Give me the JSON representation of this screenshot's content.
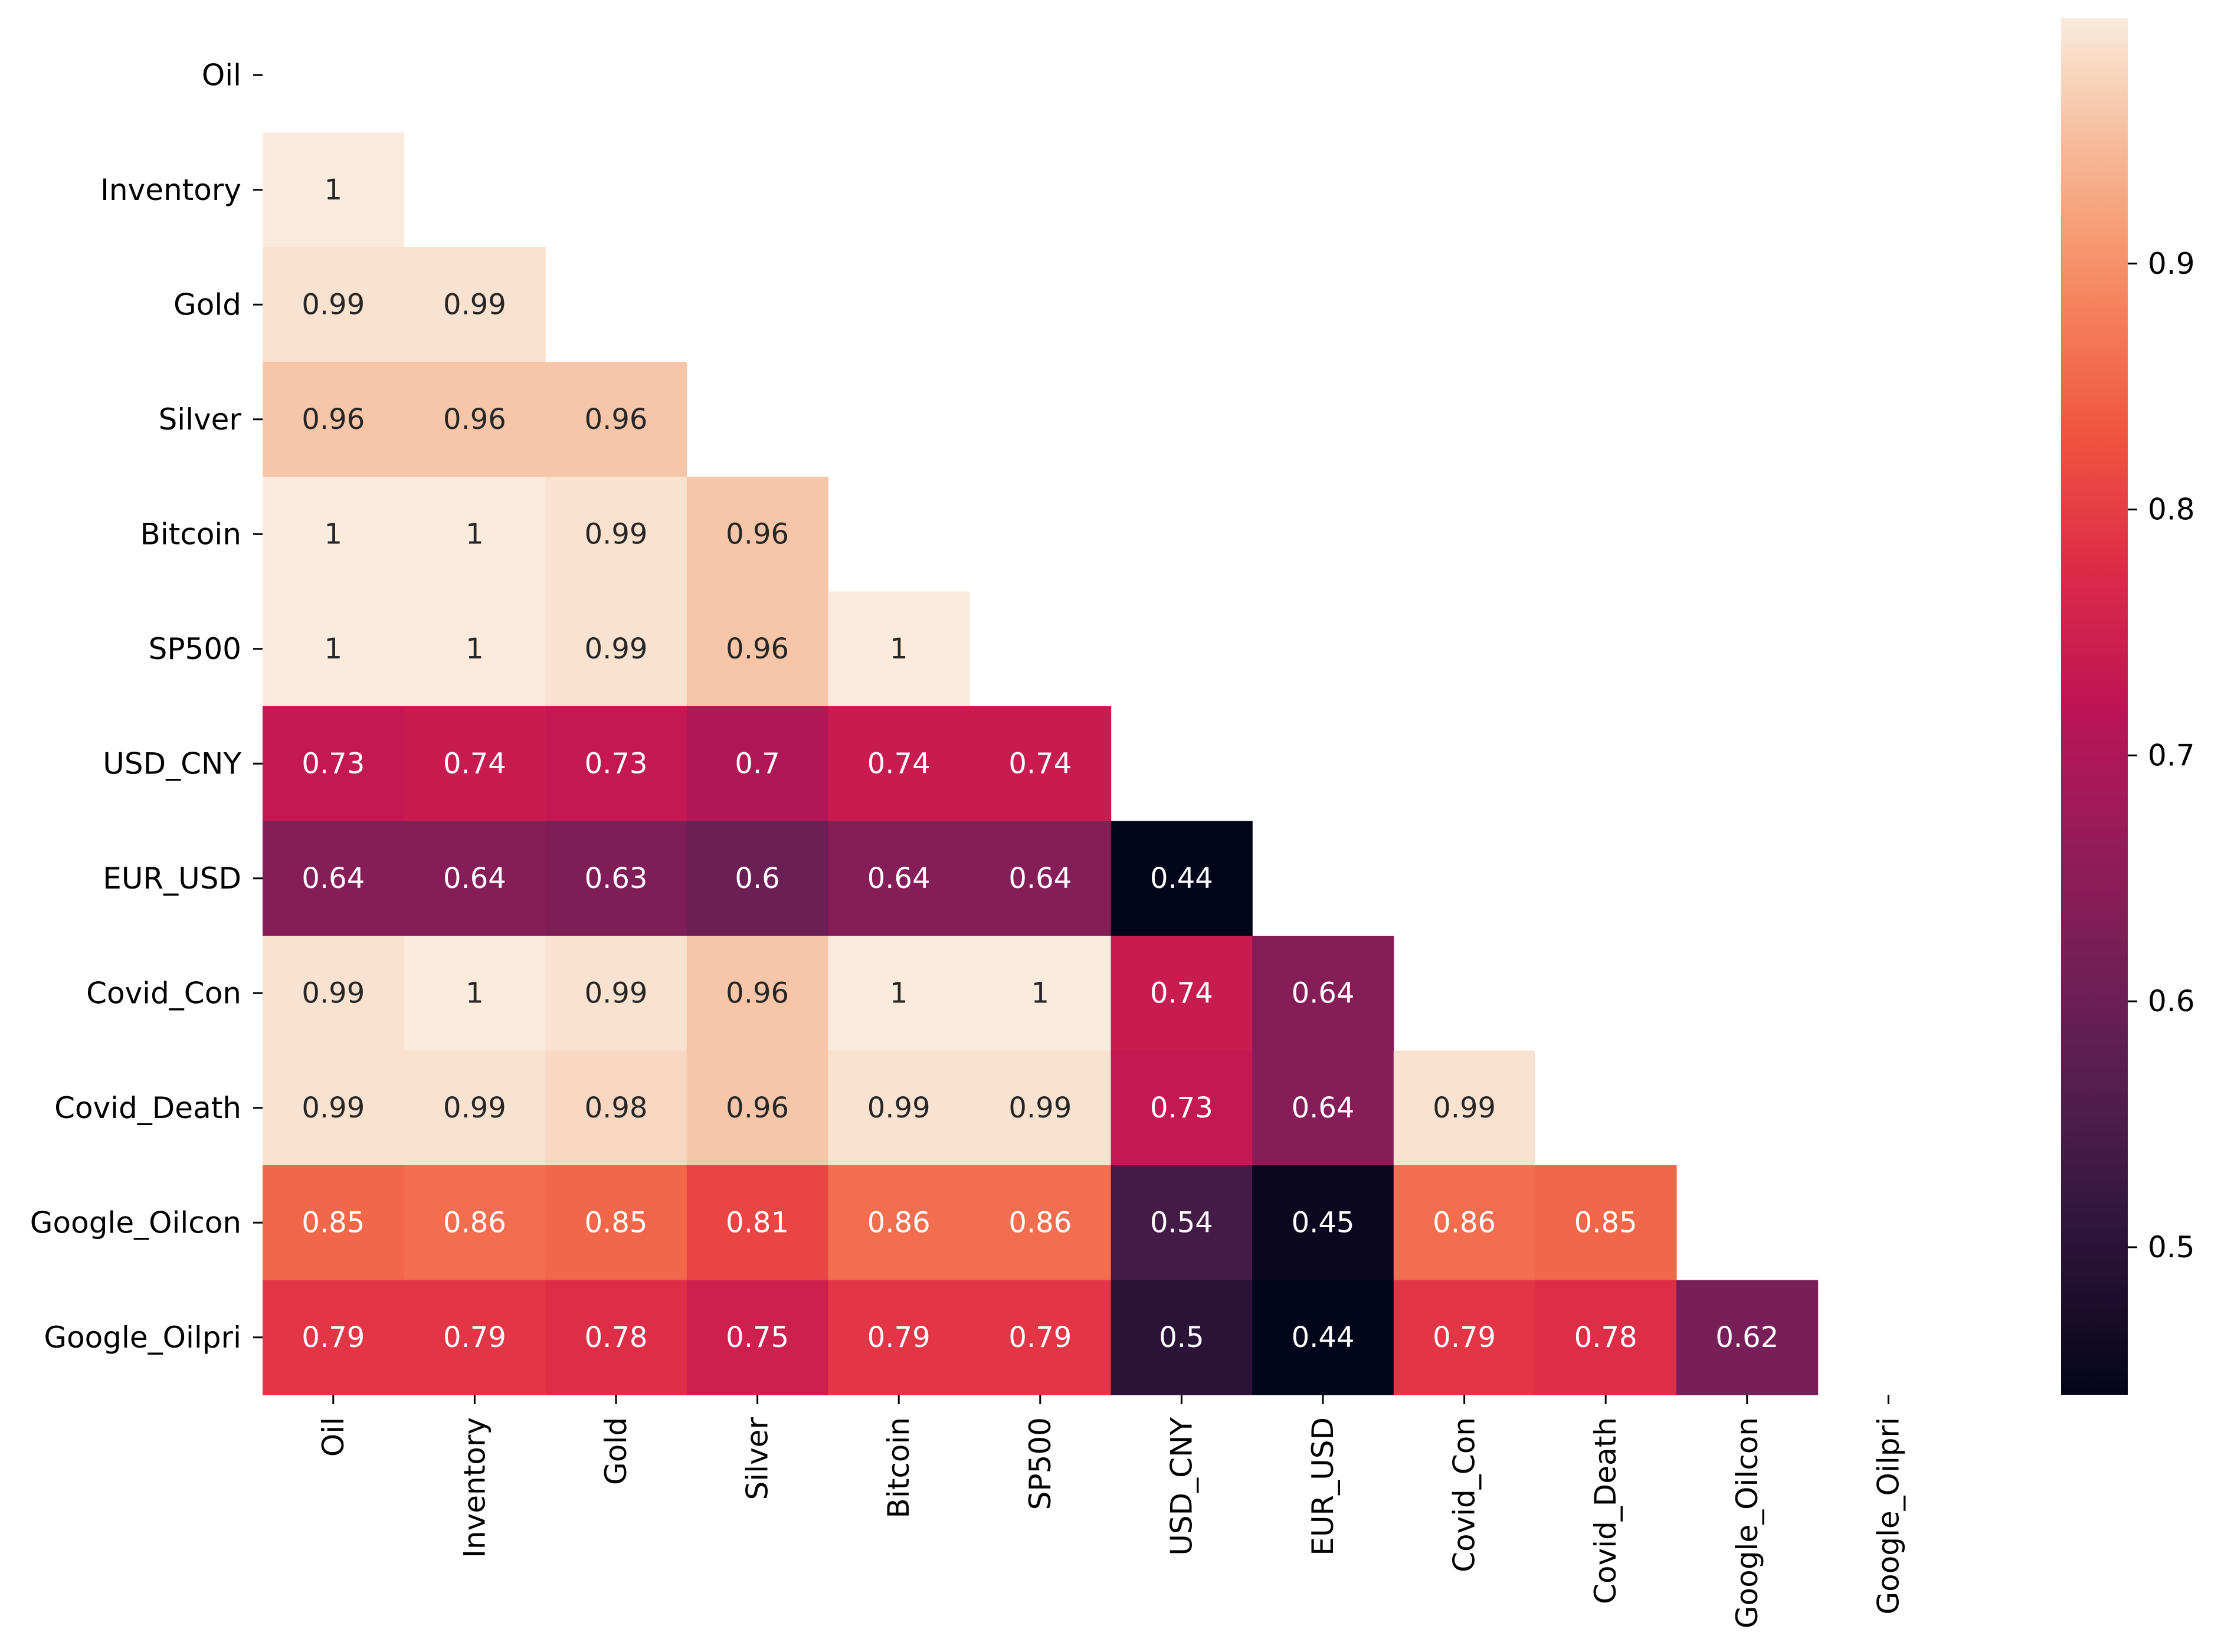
{
  "chart_data": {
    "type": "heatmap",
    "title": "",
    "xlabel": "",
    "ylabel": "",
    "categories": [
      "Oil",
      "Inventory",
      "Gold",
      "Silver",
      "Bitcoin",
      "SP500",
      "USD_CNY",
      "EUR_USD",
      "Covid_Con",
      "Covid_Death",
      "Google_Oilcon",
      "Google_Oilpri"
    ],
    "mask": "upper-triangle",
    "values": [
      [
        null,
        null,
        null,
        null,
        null,
        null,
        null,
        null,
        null,
        null,
        null,
        null
      ],
      [
        1,
        null,
        null,
        null,
        null,
        null,
        null,
        null,
        null,
        null,
        null,
        null
      ],
      [
        0.99,
        0.99,
        null,
        null,
        null,
        null,
        null,
        null,
        null,
        null,
        null,
        null
      ],
      [
        0.96,
        0.96,
        0.96,
        null,
        null,
        null,
        null,
        null,
        null,
        null,
        null,
        null
      ],
      [
        1,
        1,
        0.99,
        0.96,
        null,
        null,
        null,
        null,
        null,
        null,
        null,
        null
      ],
      [
        1,
        1,
        0.99,
        0.96,
        1,
        null,
        null,
        null,
        null,
        null,
        null,
        null
      ],
      [
        0.73,
        0.74,
        0.73,
        0.7,
        0.74,
        0.74,
        null,
        null,
        null,
        null,
        null,
        null
      ],
      [
        0.64,
        0.64,
        0.63,
        0.6,
        0.64,
        0.64,
        0.44,
        null,
        null,
        null,
        null,
        null
      ],
      [
        0.99,
        1,
        0.99,
        0.96,
        1,
        1,
        0.74,
        0.64,
        null,
        null,
        null,
        null
      ],
      [
        0.99,
        0.99,
        0.98,
        0.96,
        0.99,
        0.99,
        0.73,
        0.64,
        0.99,
        null,
        null,
        null
      ],
      [
        0.85,
        0.86,
        0.85,
        0.81,
        0.86,
        0.86,
        0.54,
        0.45,
        0.86,
        0.85,
        null,
        null
      ],
      [
        0.79,
        0.79,
        0.78,
        0.75,
        0.79,
        0.79,
        0.5,
        0.44,
        0.79,
        0.78,
        0.62,
        null
      ]
    ],
    "colormap": "rocket",
    "colorbar": {
      "vmin": 0.44,
      "vmax": 1.0,
      "ticks": [
        0.5,
        0.6,
        0.7,
        0.8,
        0.9
      ],
      "tick_labels": [
        "0.5",
        "0.6",
        "0.7",
        "0.8",
        "0.9"
      ],
      "position": "right"
    }
  }
}
